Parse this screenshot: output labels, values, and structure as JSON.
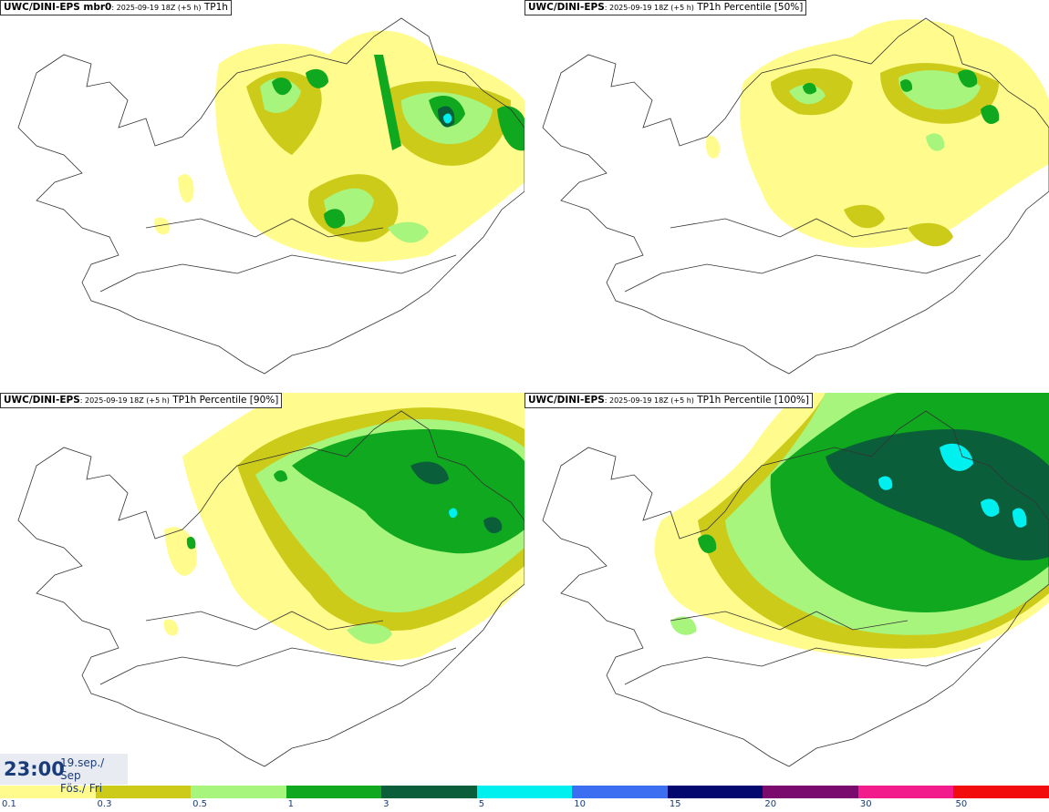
{
  "panels": [
    {
      "model": "UWC/DINI-EPS mbr0",
      "run": ": 2025-09-19 18Z (+5 h)",
      "field": " TP1h"
    },
    {
      "model": "UWC/DINI-EPS",
      "run": ": 2025-09-19 18Z (+5 h)",
      "field": " TP1h Percentile [50%]"
    },
    {
      "model": "UWC/DINI-EPS",
      "run": ": 2025-09-19 18Z (+5 h)",
      "field": " TP1h Percentile [90%]"
    },
    {
      "model": "UWC/DINI-EPS",
      "run": ": 2025-09-19 18Z (+5 h)",
      "field": " TP1h Percentile [100%]"
    }
  ],
  "valid_time": {
    "time": "23:00",
    "date_line1": "19.sep./ Sep",
    "date_line2": "Fös./ Fri"
  },
  "legend": {
    "ticks": [
      "0.1",
      "0.3",
      "0.5",
      "1",
      "3",
      "5",
      "10",
      "15",
      "20",
      "30",
      "50"
    ],
    "colors": [
      "#fffb8c",
      "#cccb1a",
      "#a8f57e",
      "#0fa81e",
      "#0b5e3a",
      "#00f0f0",
      "#3b6ef0",
      "#02086e",
      "#7a0a6e",
      "#f21c8c",
      "#f20c0c"
    ]
  }
}
